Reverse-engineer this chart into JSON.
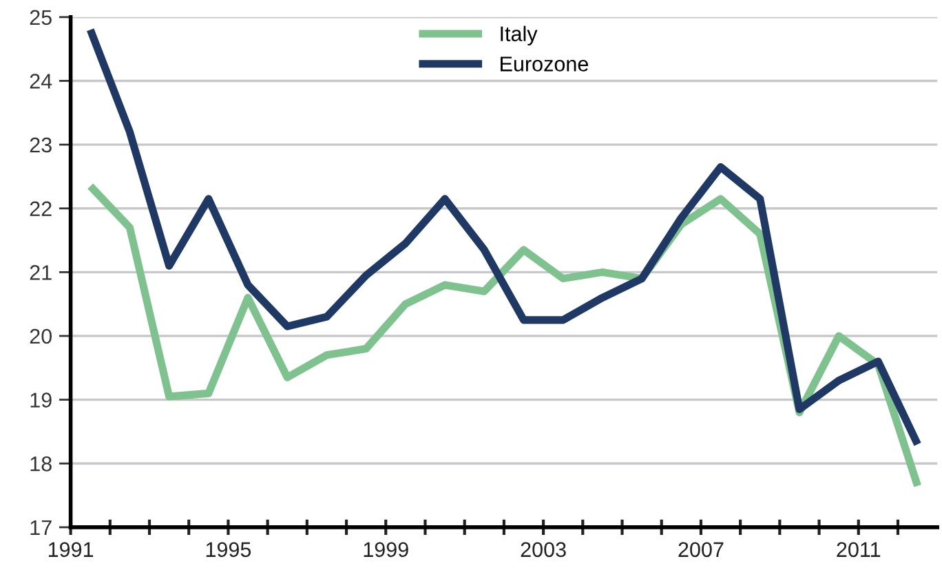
{
  "chart_data": {
    "type": "line",
    "x": [
      1991.5,
      1992.5,
      1993.5,
      1994.5,
      1995.5,
      1996.5,
      1997.5,
      1998.5,
      1999.5,
      2000.5,
      2001.5,
      2002.5,
      2003.5,
      2004.5,
      2005.5,
      2006.5,
      2007.5,
      2008.5,
      2009.5,
      2010.5,
      2011.5,
      2012.5
    ],
    "series": [
      {
        "name": "Italy",
        "color": "#7fc28f",
        "values": [
          22.35,
          21.7,
          19.05,
          19.1,
          20.6,
          19.35,
          19.7,
          19.8,
          20.5,
          20.8,
          20.7,
          21.35,
          20.9,
          21.0,
          20.9,
          21.75,
          22.15,
          21.6,
          18.8,
          20.0,
          19.55,
          17.65
        ]
      },
      {
        "name": "Eurozone",
        "color": "#1f3864",
        "values": [
          24.8,
          23.2,
          21.1,
          22.15,
          20.8,
          20.15,
          20.3,
          20.95,
          21.45,
          22.15,
          21.35,
          20.25,
          20.25,
          20.6,
          20.9,
          21.85,
          22.65,
          22.15,
          18.85,
          19.3,
          19.6,
          18.3
        ]
      }
    ],
    "xlim": [
      1991,
      2013
    ],
    "xticks": [
      1991,
      {
        "value": 1992,
        "label": null
      },
      {
        "value": 1993,
        "label": null
      },
      {
        "value": 1994,
        "label": null
      },
      1995,
      {
        "value": 1996,
        "label": null
      },
      {
        "value": 1997,
        "label": null
      },
      {
        "value": 1998,
        "label": null
      },
      1999,
      {
        "value": 2000,
        "label": null
      },
      {
        "value": 2001,
        "label": null
      },
      {
        "value": 2002,
        "label": null
      },
      2003,
      {
        "value": 2004,
        "label": null
      },
      {
        "value": 2005,
        "label": null
      },
      {
        "value": 2006,
        "label": null
      },
      2007,
      {
        "value": 2008,
        "label": null
      },
      {
        "value": 2009,
        "label": null
      },
      {
        "value": 2010,
        "label": null
      },
      2011,
      {
        "value": 2012,
        "label": null
      }
    ],
    "ylim": [
      17,
      25
    ],
    "yticks": [
      17,
      18,
      19,
      20,
      21,
      22,
      23,
      24,
      25
    ],
    "grid": "y",
    "legend": "top",
    "marker": "none",
    "line_style": "solid"
  }
}
